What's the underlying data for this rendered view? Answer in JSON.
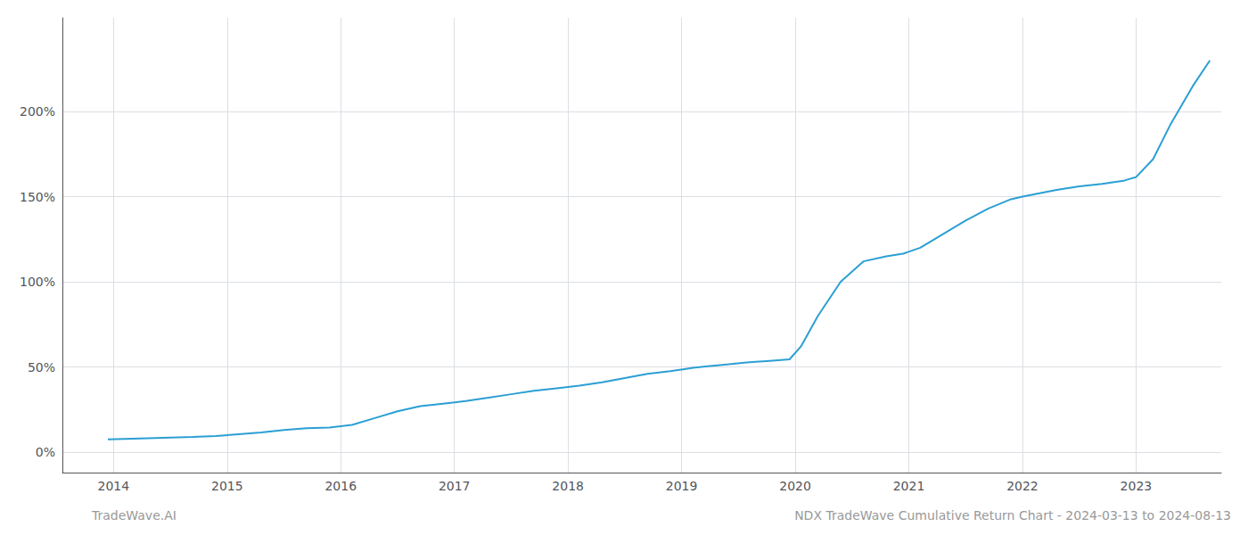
{
  "chart_data": {
    "type": "line",
    "title": "NDX TradeWave Cumulative Return Chart - 2024-03-13 to 2024-08-13",
    "annotations": [
      "TradeWave.AI"
    ],
    "x": [
      2013.95,
      2014.1,
      2014.3,
      2014.5,
      2014.7,
      2014.9,
      2015.1,
      2015.3,
      2015.5,
      2015.7,
      2015.9,
      2016.1,
      2016.3,
      2016.5,
      2016.7,
      2016.9,
      2017.1,
      2017.3,
      2017.5,
      2017.7,
      2017.9,
      2018.1,
      2018.3,
      2018.5,
      2018.7,
      2018.9,
      2019.0,
      2019.1,
      2019.25,
      2019.4,
      2019.55,
      2019.65,
      2019.75,
      2019.85,
      2019.95,
      2020.05,
      2020.2,
      2020.4,
      2020.6,
      2020.8,
      2020.95,
      2021.1,
      2021.3,
      2021.5,
      2021.7,
      2021.9,
      2022.0,
      2022.15,
      2022.3,
      2022.5,
      2022.7,
      2022.9,
      2023.0,
      2023.15,
      2023.3,
      2023.5,
      2023.65
    ],
    "values": [
      7.5,
      7.8,
      8.2,
      8.6,
      9.0,
      9.5,
      10.5,
      11.5,
      13.0,
      14.0,
      14.5,
      16.0,
      20.0,
      24.0,
      27.0,
      28.5,
      30.0,
      32.0,
      34.0,
      36.0,
      37.5,
      39.0,
      41.0,
      43.5,
      46.0,
      47.5,
      48.5,
      49.5,
      50.5,
      51.5,
      52.5,
      53.0,
      53.5,
      54.0,
      54.5,
      62.0,
      80.0,
      100.0,
      112.0,
      115.0,
      116.5,
      120.0,
      128.0,
      136.0,
      143.0,
      148.5,
      150.0,
      152.0,
      154.0,
      156.0,
      157.5,
      159.5,
      161.5,
      172.0,
      192.0,
      215.0,
      230.0
    ],
    "color": "#2b9fd4",
    "xlim": [
      2013.55,
      2023.75
    ],
    "xticks": [
      2014,
      2015,
      2016,
      2017,
      2018,
      2019,
      2020,
      2021,
      2022,
      2023
    ],
    "ylim": [
      -12,
      255
    ],
    "yticks": [
      {
        "value": 0,
        "label": "0%"
      },
      {
        "value": 50,
        "label": "50%"
      },
      {
        "value": 100,
        "label": "100%"
      },
      {
        "value": 150,
        "label": "150%"
      },
      {
        "value": 200,
        "label": "200%"
      }
    ],
    "grid": true
  }
}
